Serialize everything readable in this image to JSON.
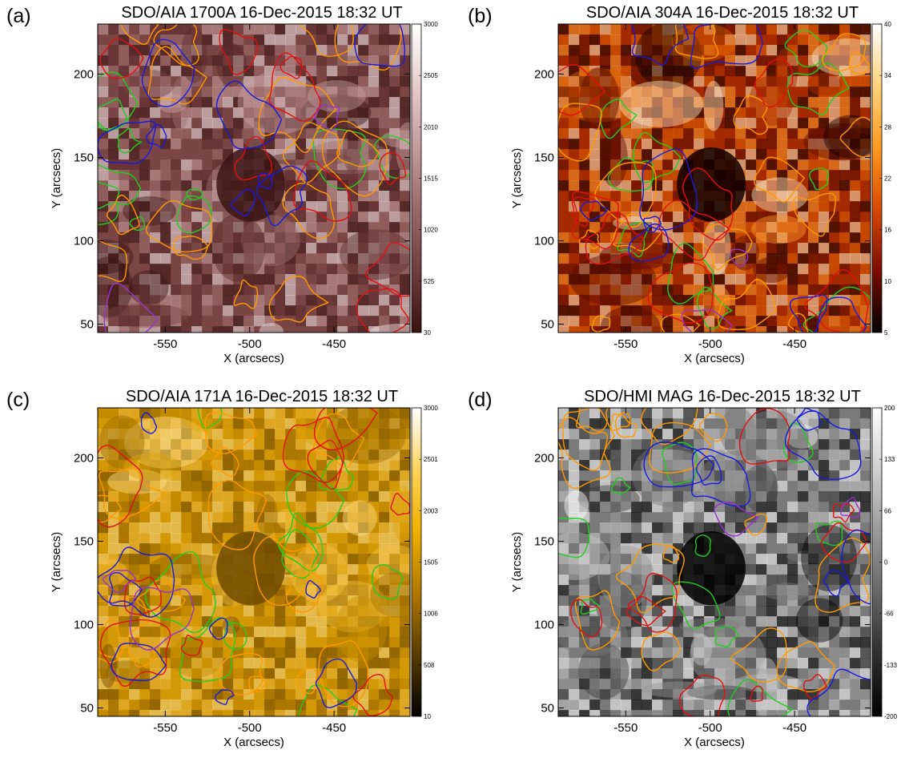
{
  "figure": {
    "panels": [
      {
        "label": "(a)",
        "title": "SDO/AIA 1700A 16-Dec-2015 18:32 UT",
        "colorbar_ticks": [
          "3000",
          "2505",
          "2010",
          "1515",
          "1020",
          "525",
          "30"
        ],
        "colorbar_colors": [
          "#ffffff",
          "#e6cccc",
          "#c49b9b",
          "#9a6a6a",
          "#6f3d3d",
          "#3a1111"
        ],
        "image_palette": [
          "#3b1414",
          "#5a2a2a",
          "#7a4545",
          "#a07070",
          "#c9a0a0",
          "#f3e6e6"
        ]
      },
      {
        "label": "(b)",
        "title": "SDO/AIA 304A 16-Dec-2015 18:32 UT",
        "colorbar_ticks": [
          "40",
          "34",
          "28",
          "22",
          "16",
          "10",
          "5"
        ],
        "colorbar_colors": [
          "#ffffff",
          "#ffd27a",
          "#ff9a1f",
          "#d94800",
          "#7a0c00",
          "#000000"
        ],
        "image_palette": [
          "#120000",
          "#5a0a00",
          "#a52a00",
          "#e06000",
          "#ff9a30",
          "#ffe8c0"
        ]
      },
      {
        "label": "(c)",
        "title": "SDO/AIA 171A 16-Dec-2015 18:32 UT",
        "colorbar_ticks": [
          "3000",
          "2501",
          "2003",
          "1505",
          "1006",
          "508",
          "10"
        ],
        "colorbar_colors": [
          "#ffffff",
          "#ffd35a",
          "#f0b000",
          "#b07800",
          "#5a3c00",
          "#000000"
        ],
        "image_palette": [
          "#6e4a00",
          "#9a6a00",
          "#c48b00",
          "#e0a40a",
          "#f4c040",
          "#ffe08a"
        ]
      },
      {
        "label": "(d)",
        "title": "SDO/HMI MAG 16-Dec-2015 18:32 UT",
        "colorbar_ticks": [
          "200",
          "133",
          "66",
          "0",
          "-66",
          "-133",
          "-200"
        ],
        "colorbar_colors": [
          "#ffffff",
          "#cfcfcf",
          "#9a9a9a",
          "#666666",
          "#2e2e2e",
          "#000000"
        ],
        "image_palette": [
          "#000000",
          "#3a3a3a",
          "#7a7a7a",
          "#9a9a9a",
          "#c8c8c8",
          "#ffffff"
        ]
      }
    ],
    "xlabel": "X (arcsecs)",
    "ylabel": "Y (arcsecs)",
    "xticks": [
      "-550",
      "-500",
      "-450"
    ],
    "yticks": [
      "200",
      "150",
      "100",
      "50"
    ],
    "contour_colors": [
      "#22cc22",
      "#ff9900",
      "#e01010",
      "#1a1add",
      "#9933cc"
    ]
  }
}
